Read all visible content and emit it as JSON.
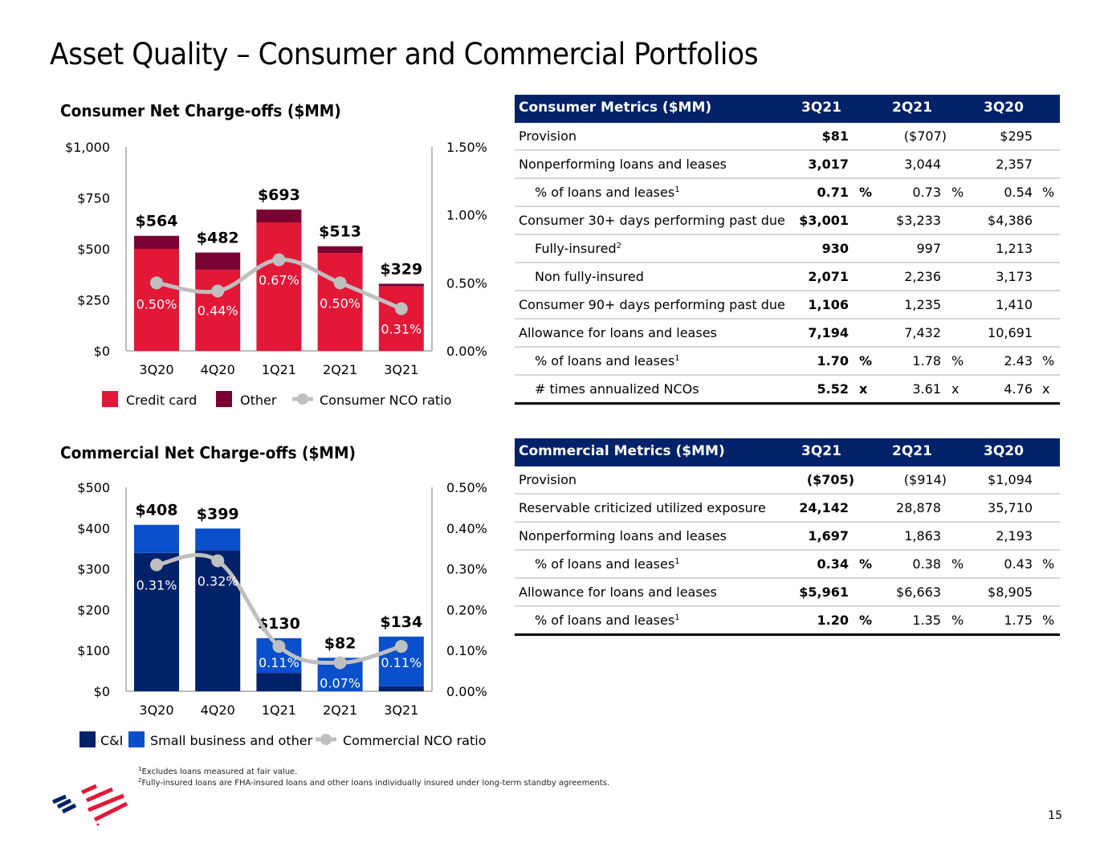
{
  "page": {
    "title": "Asset Quality – Consumer and Commercial Portfolios",
    "page_number": "15"
  },
  "colors": {
    "credit_card": "#e31837",
    "other": "#7a0031",
    "ci": "#012169",
    "small_business": "#0a4fcb",
    "ratio_line": "#bfbfbf",
    "table_header": "#012169"
  },
  "chart_data": [
    {
      "type": "bar",
      "stacked": true,
      "title": "Consumer Net Charge-offs ($MM)",
      "categories": [
        "3Q20",
        "4Q20",
        "1Q21",
        "2Q21",
        "3Q21"
      ],
      "series": [
        {
          "name": "Credit card",
          "values": [
            500,
            398,
            630,
            480,
            316
          ]
        },
        {
          "name": "Other",
          "values": [
            64,
            84,
            63,
            33,
            13
          ]
        }
      ],
      "totals": [
        564,
        482,
        693,
        513,
        329
      ],
      "total_labels": [
        "$564",
        "$482",
        "$693",
        "$513",
        "$329"
      ],
      "line_series": {
        "name": "Consumer NCO ratio",
        "axis": "right",
        "values": [
          0.5,
          0.44,
          0.67,
          0.5,
          0.31
        ],
        "labels": [
          "0.50%",
          "0.44%",
          "0.67%",
          "0.50%",
          "0.31%"
        ]
      },
      "ylim": [
        0,
        1000
      ],
      "y_ticks": [
        0,
        250,
        500,
        750,
        1000
      ],
      "y_tick_labels": [
        "$0",
        "$250",
        "$500",
        "$750",
        "$1,000"
      ],
      "y2lim": [
        0,
        1.5
      ],
      "y2_ticks": [
        0,
        0.5,
        1.0,
        1.5
      ],
      "y2_tick_labels": [
        "0.00%",
        "0.50%",
        "1.00%",
        "1.50%"
      ],
      "xlabel": "",
      "ylabel": "",
      "grid": false,
      "legend": {
        "placement": "bottom",
        "entries": [
          "Credit card",
          "Other",
          "Consumer NCO ratio"
        ]
      }
    },
    {
      "type": "bar",
      "stacked": true,
      "title": "Commercial Net Charge-offs ($MM)",
      "categories": [
        "3Q20",
        "4Q20",
        "1Q21",
        "2Q21",
        "3Q21"
      ],
      "series": [
        {
          "name": "C&I",
          "values": [
            339,
            346,
            45,
            0,
            12
          ]
        },
        {
          "name": "Small business and other",
          "values": [
            69,
            53,
            85,
            82,
            122
          ]
        }
      ],
      "totals": [
        408,
        399,
        130,
        82,
        134
      ],
      "total_labels": [
        "$408",
        "$399",
        "$130",
        "$82",
        "$134"
      ],
      "line_series": {
        "name": "Commercial NCO ratio",
        "axis": "right",
        "values": [
          0.31,
          0.32,
          0.11,
          0.07,
          0.11
        ],
        "labels": [
          "0.31%",
          "0.32%",
          "0.11%",
          "0.07%",
          "0.11%"
        ]
      },
      "ylim": [
        0,
        500
      ],
      "y_ticks": [
        0,
        100,
        200,
        300,
        400,
        500
      ],
      "y_tick_labels": [
        "$0",
        "$100",
        "$200",
        "$300",
        "$400",
        "$500"
      ],
      "y2lim": [
        0,
        0.5
      ],
      "y2_ticks": [
        0,
        0.1,
        0.2,
        0.3,
        0.4,
        0.5
      ],
      "y2_tick_labels": [
        "0.00%",
        "0.10%",
        "0.20%",
        "0.30%",
        "0.40%",
        "0.50%"
      ],
      "xlabel": "",
      "ylabel": "",
      "grid": false,
      "legend": {
        "placement": "bottom",
        "entries": [
          "C&I",
          "Small business and other",
          "Commercial NCO ratio"
        ]
      }
    }
  ],
  "consumer_table": {
    "title": "Consumer Metrics ($MM)",
    "columns": [
      "3Q21",
      "2Q21",
      "3Q20"
    ],
    "rows": [
      {
        "label": "Provision",
        "indent": false,
        "sup": "",
        "values": [
          "$81",
          "($707)",
          "$295"
        ],
        "suffix": ""
      },
      {
        "label": "Nonperforming loans and leases",
        "indent": false,
        "sup": "",
        "values": [
          "3,017",
          "3,044",
          "2,357"
        ],
        "suffix": ""
      },
      {
        "label": "% of loans and leases",
        "indent": true,
        "sup": "1",
        "values": [
          "0.71",
          "0.73",
          "0.54"
        ],
        "suffix": "%"
      },
      {
        "label": "Consumer 30+ days performing past due",
        "indent": false,
        "sup": "",
        "values": [
          "$3,001",
          "$3,233",
          "$4,386"
        ],
        "suffix": ""
      },
      {
        "label": "Fully-insured",
        "indent": true,
        "sup": "2",
        "values": [
          "930",
          "997",
          "1,213"
        ],
        "suffix": ""
      },
      {
        "label": "Non fully-insured",
        "indent": true,
        "sup": "",
        "values": [
          "2,071",
          "2,236",
          "3,173"
        ],
        "suffix": ""
      },
      {
        "label": "Consumer 90+ days performing past due",
        "indent": false,
        "sup": "",
        "values": [
          "1,106",
          "1,235",
          "1,410"
        ],
        "suffix": ""
      },
      {
        "label": "Allowance for loans and leases",
        "indent": false,
        "sup": "",
        "values": [
          "7,194",
          "7,432",
          "10,691"
        ],
        "suffix": ""
      },
      {
        "label": "% of loans and leases",
        "indent": true,
        "sup": "1",
        "values": [
          "1.70",
          "1.78",
          "2.43"
        ],
        "suffix": "%"
      },
      {
        "label": "# times annualized NCOs",
        "indent": true,
        "sup": "",
        "values": [
          "5.52",
          "3.61",
          "4.76"
        ],
        "suffix": "x"
      }
    ]
  },
  "commercial_table": {
    "title": "Commercial Metrics ($MM)",
    "columns": [
      "3Q21",
      "2Q21",
      "3Q20"
    ],
    "rows": [
      {
        "label": "Provision",
        "indent": false,
        "sup": "",
        "values": [
          "($705)",
          "($914)",
          "$1,094"
        ],
        "suffix": ""
      },
      {
        "label": "Reservable criticized utilized exposure",
        "indent": false,
        "sup": "",
        "values": [
          "24,142",
          "28,878",
          "35,710"
        ],
        "suffix": ""
      },
      {
        "label": "Nonperforming loans and leases",
        "indent": false,
        "sup": "",
        "values": [
          "1,697",
          "1,863",
          "2,193"
        ],
        "suffix": ""
      },
      {
        "label": "% of loans and leases",
        "indent": true,
        "sup": "1",
        "values": [
          "0.34",
          "0.38",
          "0.43"
        ],
        "suffix": "%"
      },
      {
        "label": "Allowance for loans and leases",
        "indent": false,
        "sup": "",
        "values": [
          "$5,961",
          "$6,663",
          "$8,905"
        ],
        "suffix": ""
      },
      {
        "label": "% of loans and leases",
        "indent": true,
        "sup": "1",
        "values": [
          "1.20",
          "1.35",
          "1.75"
        ],
        "suffix": "%"
      }
    ]
  },
  "footnotes": [
    {
      "marker": "1",
      "text": "Excludes loans measured at fair value."
    },
    {
      "marker": "2",
      "text": "Fully-insured loans are FHA-insured loans and other loans individually insured under long-term standby agreements."
    }
  ],
  "logo": {
    "name": "bank-flagscape-logo"
  }
}
